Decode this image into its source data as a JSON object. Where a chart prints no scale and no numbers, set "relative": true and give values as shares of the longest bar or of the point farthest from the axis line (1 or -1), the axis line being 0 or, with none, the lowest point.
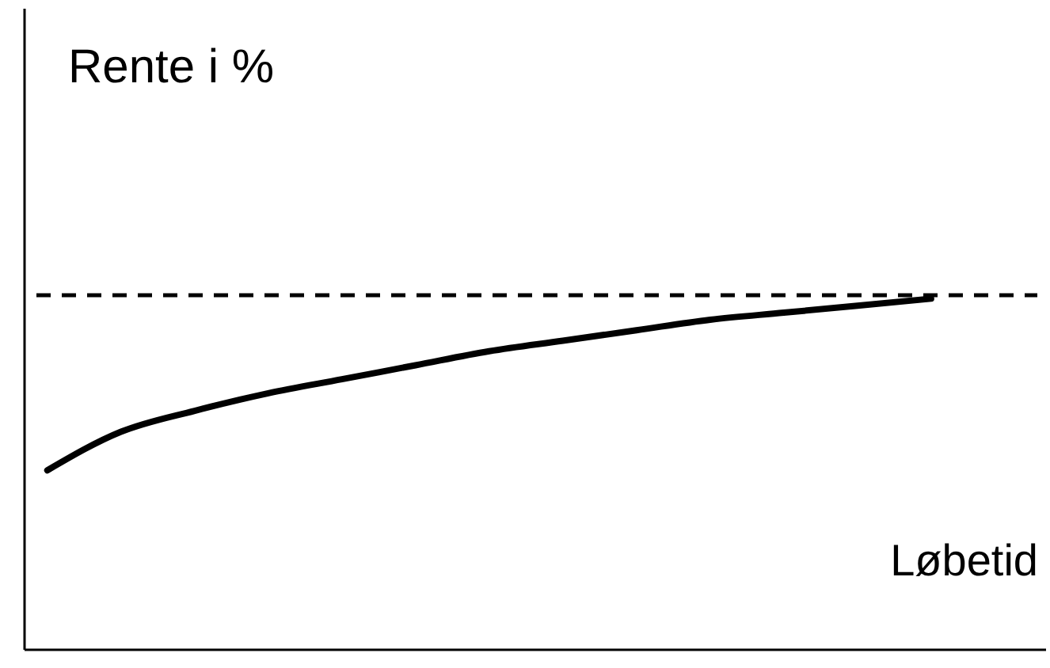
{
  "chart_data": {
    "type": "line",
    "xlabel": "Løbetid",
    "ylabel": "Rente i %",
    "relative": true,
    "tick_labels": false,
    "line_style": "solid",
    "categories": [
      null,
      null,
      null,
      null,
      null,
      null,
      null,
      null,
      null,
      null,
      null,
      null,
      null
    ],
    "series": [
      {
        "color": "#000000",
        "values": [
          0.51,
          0.62,
          0.68,
          0.73,
          0.77,
          0.81,
          0.85,
          0.88,
          0.91,
          0.94,
          0.96,
          0.98,
          1.0
        ]
      }
    ],
    "ref_lines": [
      {
        "axis": "y",
        "value": 1.01,
        "color": "#000000",
        "line_style": "dashed"
      }
    ]
  }
}
